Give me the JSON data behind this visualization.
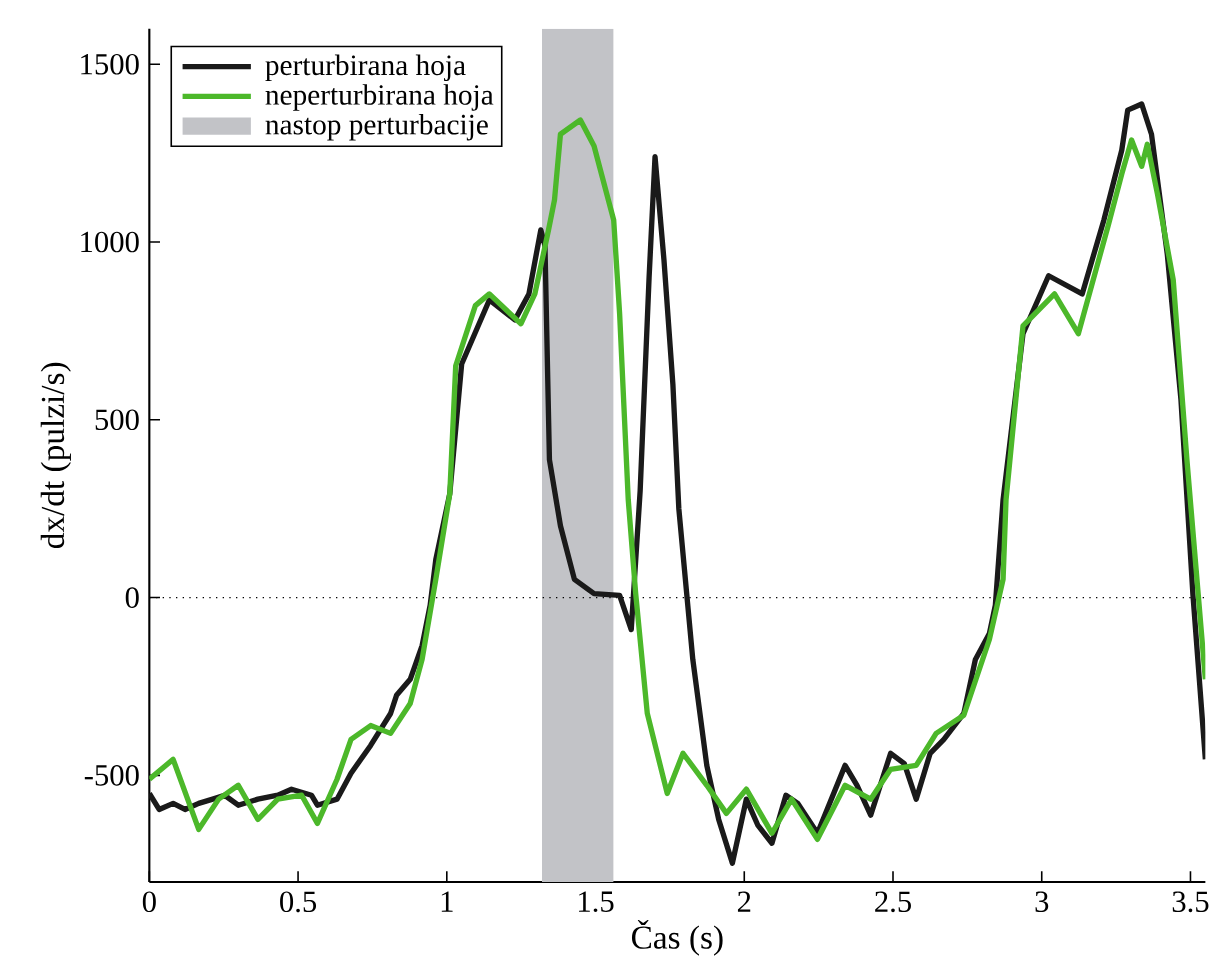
{
  "chart_data": {
    "type": "line",
    "xlabel": "Čas (s)",
    "ylabel": "dx/dt (pulzi/s)",
    "xlim": [
      0,
      3.55
    ],
    "ylim": [
      -800,
      1600
    ],
    "xticks": [
      0,
      0.5,
      1,
      1.5,
      2,
      2.5,
      3,
      3.5
    ],
    "yticks": [
      -500,
      0,
      500,
      1000,
      1500
    ],
    "legend": "top left",
    "grid": false,
    "line_style": "solid",
    "marker": "none",
    "ref_lines": [
      {
        "axis": "y",
        "value": 0,
        "line_style": "dotted",
        "color": "#000000"
      }
    ],
    "bands": [
      {
        "axis": "x",
        "from": 1.32,
        "to": 1.56,
        "label": "nastop perturbacije",
        "color": "#c2c3c7"
      }
    ],
    "series": [
      {
        "name": "perturbirana hoja",
        "color": "#1a1a1a",
        "x": [
          0,
          0.033,
          0.08,
          0.12,
          0.166,
          0.213,
          0.253,
          0.299,
          0.365,
          0.432,
          0.478,
          0.545,
          0.565,
          0.631,
          0.678,
          0.744,
          0.811,
          0.831,
          0.877,
          0.917,
          0.944,
          0.963,
          1.01,
          1.05,
          1.143,
          1.229,
          1.276,
          1.316,
          1.33,
          1.345,
          1.382,
          1.429,
          1.495,
          1.581,
          1.62,
          1.65,
          1.68,
          1.7,
          1.73,
          1.76,
          1.78,
          1.827,
          1.874,
          1.914,
          1.96,
          2.007,
          2.046,
          2.093,
          2.14,
          2.18,
          2.246,
          2.339,
          2.379,
          2.425,
          2.492,
          2.538,
          2.578,
          2.625,
          2.671,
          2.738,
          2.777,
          2.824,
          2.844,
          2.87,
          2.937,
          3.023,
          3.136,
          3.209,
          3.269,
          3.289,
          3.336,
          3.369,
          3.422,
          3.468,
          3.508,
          3.55
        ],
        "values": [
          -551,
          -596,
          -579,
          -596,
          -579,
          -567,
          -556,
          -584,
          -567,
          -556,
          -539,
          -556,
          -584,
          -567,
          -494,
          -416,
          -326,
          -275,
          -230,
          -135,
          -22,
          107,
          292,
          657,
          837,
          781,
          854,
          1034,
          989,
          388,
          202,
          51,
          11,
          6,
          -90,
          300,
          900,
          1240,
          950,
          600,
          250,
          -174,
          -472,
          -624,
          -747,
          -567,
          -641,
          -691,
          -556,
          -579,
          -663,
          -472,
          -528,
          -612,
          -438,
          -467,
          -567,
          -438,
          -399,
          -326,
          -174,
          -101,
          -22,
          275,
          742,
          905,
          854,
          1062,
          1258,
          1371,
          1388,
          1303,
          966,
          556,
          11,
          -455
        ]
      },
      {
        "name": "neperturbirana hoja",
        "color": "#4cb82a",
        "x": [
          0,
          0.08,
          0.166,
          0.233,
          0.299,
          0.365,
          0.432,
          0.512,
          0.565,
          0.631,
          0.678,
          0.744,
          0.811,
          0.877,
          0.917,
          0.963,
          1.01,
          1.03,
          1.096,
          1.143,
          1.249,
          1.296,
          1.342,
          1.362,
          1.382,
          1.449,
          1.495,
          1.561,
          1.581,
          1.61,
          1.635,
          1.674,
          1.741,
          1.794,
          1.874,
          1.94,
          2.007,
          2.093,
          2.159,
          2.246,
          2.339,
          2.425,
          2.492,
          2.578,
          2.645,
          2.738,
          2.824,
          2.87,
          2.88,
          2.937,
          3.043,
          3.123,
          3.223,
          3.269,
          3.302,
          3.336,
          3.355,
          3.389,
          3.442,
          3.488,
          3.55
        ],
        "values": [
          -511,
          -455,
          -652,
          -567,
          -528,
          -624,
          -567,
          -556,
          -635,
          -511,
          -399,
          -360,
          -382,
          -298,
          -174,
          51,
          292,
          652,
          821,
          854,
          770,
          854,
          1034,
          1118,
          1303,
          1343,
          1270,
          1062,
          798,
          275,
          11,
          -326,
          -551,
          -438,
          -528,
          -607,
          -539,
          -663,
          -567,
          -680,
          -528,
          -567,
          -483,
          -472,
          -382,
          -331,
          -118,
          51,
          275,
          764,
          854,
          742,
          1045,
          1191,
          1287,
          1213,
          1275,
          1135,
          894,
          388,
          -230
        ]
      }
    ]
  }
}
